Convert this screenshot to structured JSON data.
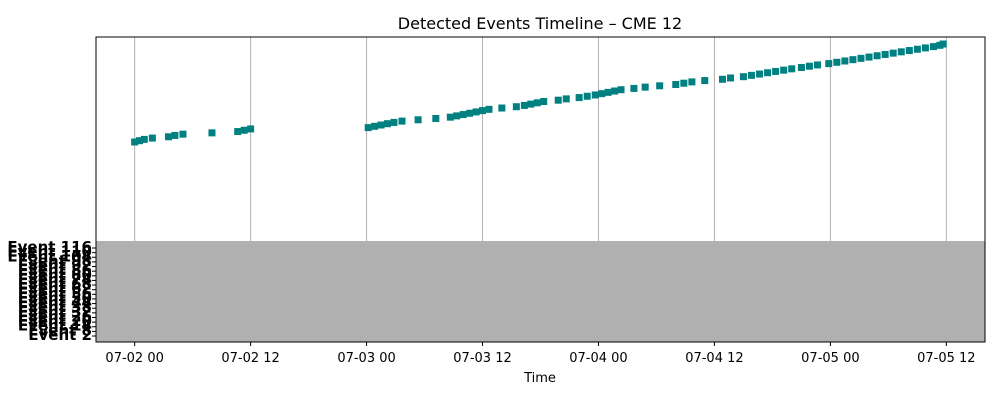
{
  "chart_data": {
    "type": "scatter",
    "title": "Detected Events Timeline – CME 12",
    "xlabel": "Time",
    "ylabel": "",
    "x_tick_labels": [
      "07-02 00",
      "07-02 12",
      "07-03 00",
      "07-03 12",
      "07-04 00",
      "07-04 12",
      "07-05 00",
      "07-05 12"
    ],
    "x_range": [
      "07-01 20:00",
      "07-05 16:00"
    ],
    "y_tick_labels": [
      "Event 116",
      "Event 110",
      "Event 104",
      "Event 98",
      "Event 92",
      "Event 86",
      "Event 80",
      "Event 74",
      "Event 68",
      "Event 62",
      "Event 56",
      "Event 50",
      "Event 44",
      "Event 38",
      "Event 32",
      "Event 26",
      "Event 20",
      "Event 14",
      "Event 8",
      "Event 2"
    ],
    "y_range": [
      0,
      117
    ],
    "grid": "x",
    "marker_color": "#008080",
    "series": [
      {
        "points": [
          [
            "07-02 00:00",
            1
          ],
          [
            "07-02 00:30",
            2
          ],
          [
            "07-02 01:00",
            3
          ],
          [
            "07-02 01:50",
            4
          ],
          [
            "07-02 03:30",
            5
          ],
          [
            "07-02 04:10",
            6
          ],
          [
            "07-02 05:00",
            7
          ],
          [
            "07-02 08:00",
            8
          ],
          [
            "07-02 10:40",
            9
          ],
          [
            "07-02 11:20",
            10
          ],
          [
            "07-02 12:00",
            11
          ],
          [
            "07-03 00:10",
            12
          ],
          [
            "07-03 00:50",
            13
          ],
          [
            "07-03 01:30",
            14
          ],
          [
            "07-03 02:10",
            15
          ],
          [
            "07-03 02:50",
            16
          ],
          [
            "07-03 03:40",
            17
          ],
          [
            "07-03 05:20",
            18
          ],
          [
            "07-03 07:10",
            19
          ],
          [
            "07-03 08:40",
            20
          ],
          [
            "07-03 09:20",
            21
          ],
          [
            "07-03 10:00",
            22
          ],
          [
            "07-03 10:40",
            23
          ],
          [
            "07-03 11:20",
            24
          ],
          [
            "07-03 12:00",
            25
          ],
          [
            "07-03 12:40",
            26
          ],
          [
            "07-03 14:00",
            27
          ],
          [
            "07-03 15:30",
            28
          ],
          [
            "07-03 16:20",
            29
          ],
          [
            "07-03 17:00",
            30
          ],
          [
            "07-03 17:40",
            31
          ],
          [
            "07-03 18:20",
            32
          ],
          [
            "07-03 19:50",
            33
          ],
          [
            "07-03 20:40",
            34
          ],
          [
            "07-03 22:00",
            35
          ],
          [
            "07-03 22:50",
            36
          ],
          [
            "07-03 23:40",
            37
          ],
          [
            "07-04 00:20",
            38
          ],
          [
            "07-04 01:00",
            39
          ],
          [
            "07-04 01:40",
            40
          ],
          [
            "07-04 02:20",
            41
          ],
          [
            "07-04 03:40",
            42
          ],
          [
            "07-04 04:50",
            43
          ],
          [
            "07-04 06:20",
            44
          ],
          [
            "07-04 08:00",
            45
          ],
          [
            "07-04 08:50",
            46
          ],
          [
            "07-04 09:40",
            47
          ],
          [
            "07-04 11:00",
            48
          ],
          [
            "07-04 12:50",
            49
          ],
          [
            "07-04 13:40",
            50
          ],
          [
            "07-04 15:00",
            51
          ],
          [
            "07-04 15:50",
            52
          ],
          [
            "07-04 16:40",
            53
          ],
          [
            "07-04 17:30",
            54
          ],
          [
            "07-04 18:20",
            55
          ],
          [
            "07-04 19:10",
            56
          ],
          [
            "07-04 20:00",
            57
          ],
          [
            "07-04 21:00",
            58
          ],
          [
            "07-04 21:50",
            59
          ],
          [
            "07-04 22:40",
            60
          ],
          [
            "07-04 23:50",
            61
          ],
          [
            "07-05 00:40",
            62
          ],
          [
            "07-05 01:30",
            63
          ],
          [
            "07-05 02:20",
            64
          ],
          [
            "07-05 03:10",
            65
          ],
          [
            "07-05 04:00",
            66
          ],
          [
            "07-05 04:50",
            67
          ],
          [
            "07-05 05:40",
            68
          ],
          [
            "07-05 06:30",
            69
          ],
          [
            "07-05 07:20",
            70
          ],
          [
            "07-05 08:10",
            71
          ],
          [
            "07-05 09:00",
            72
          ],
          [
            "07-05 09:50",
            73
          ],
          [
            "07-05 10:40",
            74
          ],
          [
            "07-05 11:20",
            75
          ],
          [
            "07-05 11:40",
            76
          ]
        ]
      }
    ]
  }
}
